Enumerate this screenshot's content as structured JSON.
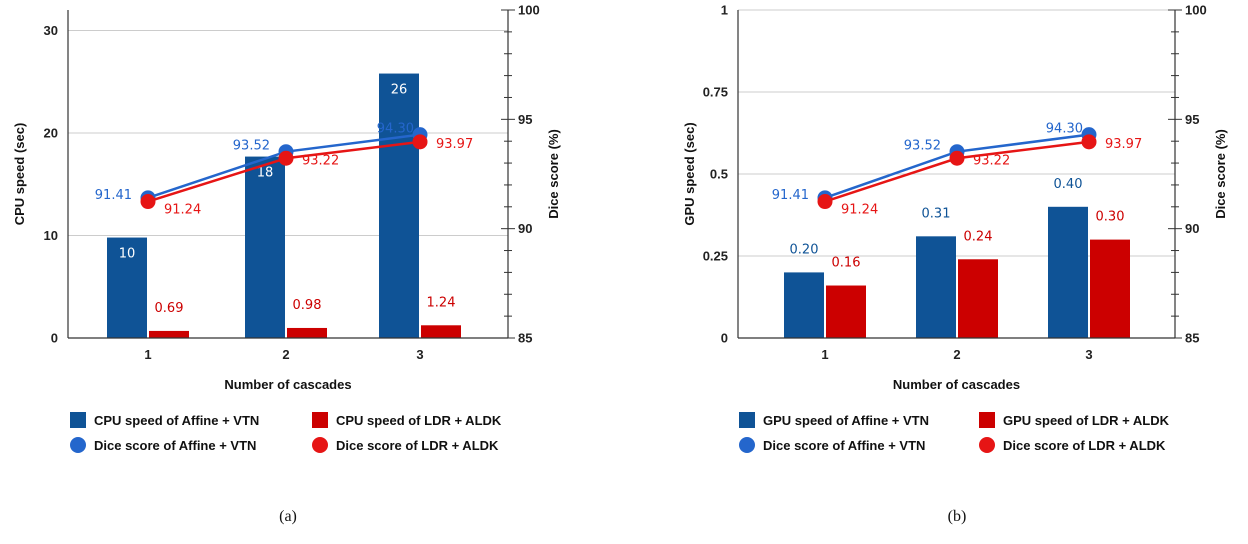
{
  "colors": {
    "blue": "#0f5396",
    "red": "#cc0000",
    "line_blue": "#2466cc",
    "line_red": "#e61515",
    "grid": "#cccccc"
  },
  "chart_data": [
    {
      "type": "bar",
      "caption": "(a)",
      "categories": [
        "1",
        "2",
        "3"
      ],
      "xlabel": "Number of cascades",
      "ylabel": "CPU speed (sec)",
      "y2label": "Dice score (%)",
      "ylim": [
        0,
        32
      ],
      "yticks": [
        "0",
        "10",
        "20",
        "30"
      ],
      "ytick_values": [
        0,
        10,
        20,
        30
      ],
      "y2lim": [
        85,
        100
      ],
      "y2ticks": [
        "85",
        "90",
        "95",
        "100"
      ],
      "y2tick_values": [
        85,
        90,
        95,
        100
      ],
      "bars": [
        {
          "name": "CPU speed of Affine + VTN",
          "values": [
            9.8,
            17.7,
            25.8
          ],
          "labels": [
            "10",
            "18",
            "26"
          ],
          "label_inside": true
        },
        {
          "name": "CPU speed of LDR + ALDK",
          "values": [
            0.69,
            0.98,
            1.24
          ],
          "labels": [
            "0.69",
            "0.98",
            "1.24"
          ],
          "label_inside": false
        }
      ],
      "lines": [
        {
          "name": "Dice score of Affine + VTN",
          "values": [
            91.41,
            93.52,
            94.3
          ],
          "labels": [
            "91.41",
            "93.52",
            "94.30"
          ]
        },
        {
          "name": "Dice score of LDR + ALDK",
          "values": [
            91.24,
            93.22,
            93.97
          ],
          "labels": [
            "91.24",
            "93.22",
            "93.97"
          ]
        }
      ],
      "legend_position": "bottom"
    },
    {
      "type": "bar",
      "caption": "(b)",
      "categories": [
        "1",
        "2",
        "3"
      ],
      "xlabel": "Number of cascades",
      "ylabel": "GPU speed (sec)",
      "y2label": "Dice score (%)",
      "ylim": [
        0,
        1
      ],
      "yticks": [
        "0",
        "0.25",
        "0.5",
        "0.75",
        "1"
      ],
      "ytick_values": [
        0,
        0.25,
        0.5,
        0.75,
        1
      ],
      "y2lim": [
        85,
        100
      ],
      "y2ticks": [
        "85",
        "90",
        "95",
        "100"
      ],
      "y2tick_values": [
        85,
        90,
        95,
        100
      ],
      "bars": [
        {
          "name": "GPU speed of Affine + VTN",
          "values": [
            0.2,
            0.31,
            0.4
          ],
          "labels": [
            "0.20",
            "0.31",
            "0.40"
          ],
          "label_inside": false
        },
        {
          "name": "GPU speed of LDR + ALDK",
          "values": [
            0.16,
            0.24,
            0.3
          ],
          "labels": [
            "0.16",
            "0.24",
            "0.30"
          ],
          "label_inside": false
        }
      ],
      "lines": [
        {
          "name": "Dice score of Affine + VTN",
          "values": [
            91.41,
            93.52,
            94.3
          ],
          "labels": [
            "91.41",
            "93.52",
            "94.30"
          ]
        },
        {
          "name": "Dice score of LDR + ALDK",
          "values": [
            91.24,
            93.22,
            93.97
          ],
          "labels": [
            "91.24",
            "93.22",
            "93.97"
          ]
        }
      ],
      "legend_position": "bottom"
    }
  ]
}
